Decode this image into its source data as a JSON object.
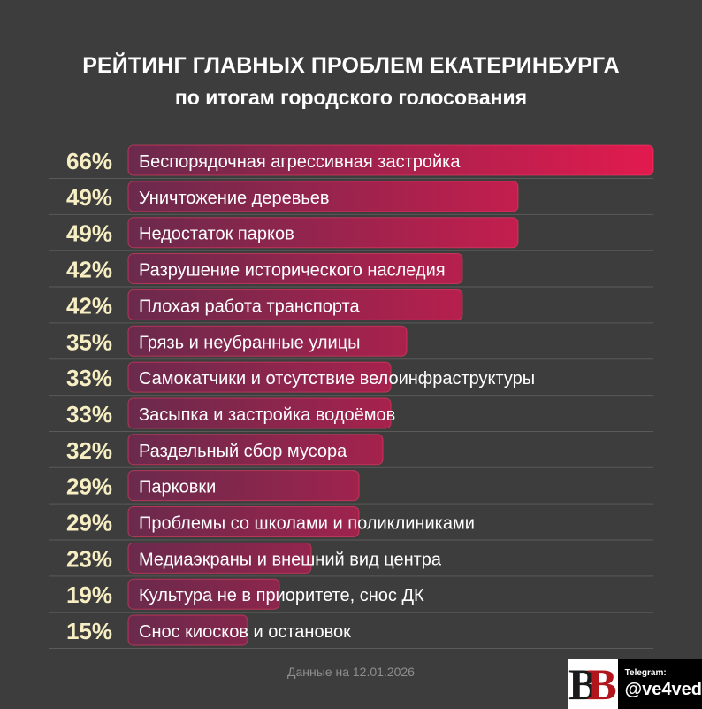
{
  "title": "РЕЙТИНГ ГЛАВНЫХ ПРОБЛЕМ ЕКАТЕРИНБУРГА",
  "subtitle": "по итогам городского голосования",
  "footer_date": "Данные на 12.01.2026",
  "badge": {
    "logo_letters": [
      "B",
      "B"
    ],
    "telegram_label": "Telegram:",
    "handle": "@ve4ved"
  },
  "colors": {
    "background": "#3d3d3d",
    "bar_start": "#6a2a4c",
    "bar_end": "#e21a4e",
    "bar_border": "#ff3d6a",
    "percent_text": "#f7efc3",
    "label_text": "#ffffff",
    "separator": "#5a5a5a"
  },
  "chart_data": {
    "type": "bar",
    "orientation": "horizontal",
    "title": "РЕЙТИНГ ГЛАВНЫХ ПРОБЛЕМ ЕКАТЕРИНБУРГА",
    "subtitle": "по итогам городского голосования",
    "value_suffix": "%",
    "xlim": [
      0,
      66
    ],
    "categories": [
      "Беспорядочная агрессивная застройка",
      "Уничтожение деревьев",
      "Недостаток парков",
      "Разрушение исторического наследия",
      "Плохая работа транспорта",
      "Грязь и неубранные улицы",
      "Самокатчики и отсутствие велоинфраструктуры",
      "Засыпка и застройка водоёмов",
      "Раздельный сбор мусора",
      "Парковки",
      "Проблемы со школами и поликлиниками",
      "Медиаэкраны и внешний вид центра",
      "Культура не в приоритете, снос ДК",
      "Снос киосков и остановок"
    ],
    "values": [
      66,
      49,
      49,
      42,
      42,
      35,
      33,
      33,
      32,
      29,
      29,
      23,
      19,
      15
    ]
  }
}
